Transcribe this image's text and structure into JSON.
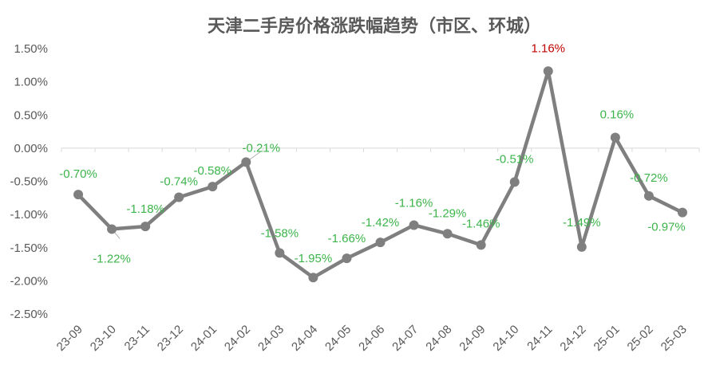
{
  "chart_data": {
    "type": "line",
    "title": "天津二手房价格涨跌幅趋势（市区、环城）",
    "xlabel": "",
    "ylabel": "",
    "categories": [
      "23-09",
      "23-10",
      "23-11",
      "23-12",
      "24-01",
      "24-02",
      "24-03",
      "24-04",
      "24-05",
      "24-06",
      "24-07",
      "24-08",
      "24-09",
      "24-10",
      "24-11",
      "24-12",
      "25-01",
      "25-02",
      "25-03"
    ],
    "series": [
      {
        "values": [
          -0.7,
          -1.22,
          -1.18,
          -0.74,
          -0.58,
          -0.21,
          -1.58,
          -1.95,
          -1.66,
          -1.42,
          -1.16,
          -1.29,
          -1.46,
          -0.51,
          1.16,
          -1.49,
          0.16,
          -0.72,
          -0.97
        ],
        "labels": [
          "-0.70%",
          "-1.22%",
          "-1.18%",
          "-0.74%",
          "-0.58%",
          "-0.21%",
          "-1.58%",
          "-1.95%",
          "-1.66%",
          "-1.42%",
          "-1.16%",
          "-1.29%",
          "-1.46%",
          "-0.51%",
          "1.16%",
          "-1.49%",
          "0.16%",
          "-0.72%",
          "-0.97%"
        ]
      }
    ],
    "ylim": [
      -2.5,
      1.5
    ],
    "yticks": [
      "1.50%",
      "1.00%",
      "0.50%",
      "0.00%",
      "-0.50%",
      "-1.00%",
      "-1.50%",
      "-2.00%",
      "-2.50%"
    ],
    "grid": false,
    "colors": {
      "line": "#7f7f7f",
      "label_negative": "#3cb44b",
      "label_positive": "#c00000",
      "axis": "#d9d9d9",
      "text": "#595959"
    }
  }
}
